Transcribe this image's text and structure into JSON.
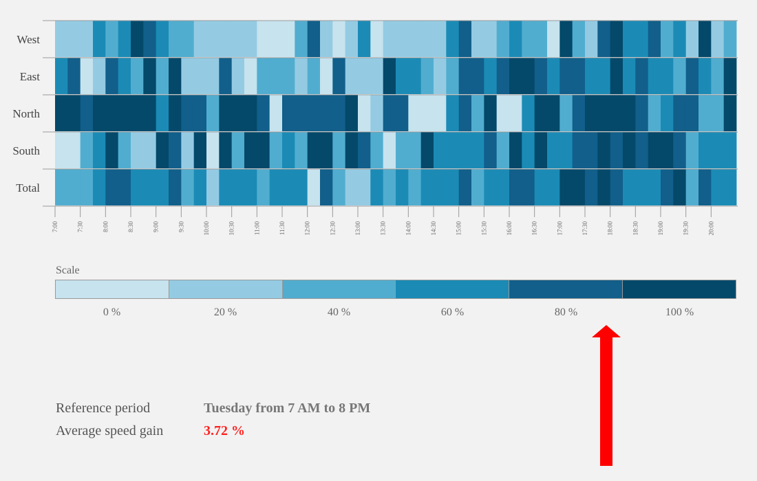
{
  "colors": {
    "background": "#f2f2f2",
    "scale": [
      "#c6e3ee",
      "#94cbe3",
      "#51adcf",
      "#1b8bb6",
      "#115f8a",
      "#04496a"
    ],
    "highlight": "#ff2020",
    "arrow": "#ff0000"
  },
  "chart_data": {
    "type": "heatmap",
    "rows": [
      "West",
      "East",
      "North",
      "South",
      "Total"
    ],
    "time_ticks": [
      "7:00",
      "7:30",
      "8:00",
      "8:30",
      "9:00",
      "9:30",
      "10:00",
      "10:30",
      "11:00",
      "11:30",
      "12:00",
      "12:30",
      "13:00",
      "13:30",
      "14:00",
      "14:30",
      "15:00",
      "15:30",
      "16:00",
      "16:30",
      "17:00",
      "17:30",
      "18:00",
      "18:30",
      "19:00",
      "19:30",
      "20:00"
    ],
    "intervals_per_tick": 2,
    "value_unit": "%",
    "cells": [
      [
        20,
        20,
        20,
        60,
        40,
        60,
        100,
        80,
        60,
        40,
        40,
        20,
        20,
        20,
        20,
        20,
        0,
        0,
        0,
        40,
        80,
        20,
        0,
        20,
        60,
        0,
        20,
        20,
        20,
        20,
        20,
        60,
        80,
        20,
        20,
        40,
        60,
        40,
        40,
        0,
        100,
        40,
        20,
        80,
        100,
        60,
        60,
        80,
        40,
        60,
        20,
        100,
        20,
        40
      ],
      [
        60,
        80,
        0,
        20,
        80,
        60,
        40,
        100,
        40,
        100,
        20,
        20,
        20,
        80,
        20,
        0,
        40,
        40,
        40,
        20,
        40,
        0,
        80,
        20,
        20,
        20,
        100,
        60,
        60,
        40,
        20,
        40,
        80,
        80,
        60,
        80,
        100,
        100,
        80,
        60,
        80,
        80,
        60,
        60,
        100,
        60,
        80,
        60,
        60,
        40,
        80,
        60,
        40,
        100
      ],
      [
        100,
        100,
        80,
        100,
        100,
        100,
        100,
        100,
        60,
        100,
        80,
        80,
        40,
        100,
        100,
        100,
        80,
        0,
        80,
        80,
        80,
        80,
        80,
        100,
        0,
        20,
        80,
        80,
        0,
        0,
        0,
        60,
        80,
        40,
        100,
        0,
        0,
        60,
        100,
        100,
        40,
        80,
        100,
        100,
        100,
        100,
        80,
        40,
        60,
        80,
        80,
        40,
        40,
        100
      ],
      [
        0,
        0,
        40,
        60,
        100,
        40,
        20,
        20,
        100,
        80,
        20,
        100,
        0,
        100,
        40,
        100,
        100,
        40,
        60,
        40,
        100,
        100,
        40,
        100,
        80,
        40,
        0,
        40,
        40,
        100,
        60,
        60,
        60,
        60,
        80,
        40,
        100,
        60,
        100,
        60,
        60,
        80,
        80,
        100,
        80,
        100,
        80,
        100,
        100,
        80,
        40,
        60,
        60,
        60
      ],
      [
        40,
        40,
        40,
        60,
        80,
        80,
        60,
        60,
        60,
        80,
        40,
        60,
        20,
        60,
        60,
        60,
        40,
        60,
        60,
        60,
        0,
        80,
        40,
        20,
        20,
        60,
        40,
        60,
        40,
        60,
        60,
        60,
        80,
        40,
        60,
        60,
        80,
        80,
        60,
        60,
        100,
        100,
        80,
        100,
        80,
        60,
        60,
        60,
        80,
        100,
        40,
        80,
        60,
        60
      ]
    ],
    "scale": {
      "title": "Scale",
      "labels": [
        "0 %",
        "20 %",
        "40 %",
        "60 %",
        "80 %",
        "100 %"
      ],
      "values": [
        0,
        20,
        40,
        60,
        80,
        100
      ]
    }
  },
  "info": {
    "reference_label": "Reference period",
    "reference_value": "Tuesday from 7 AM to 8 PM",
    "speed_label": "Average speed gain",
    "speed_value": "3.72 %"
  }
}
